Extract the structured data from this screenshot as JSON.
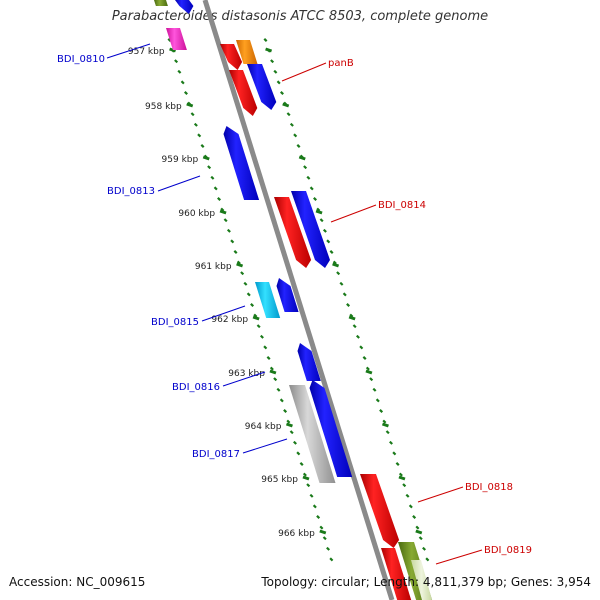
{
  "title": "Parabacteroides distasonis ATCC 8503, complete genome",
  "accession": "Accession: NC_009615",
  "topology": "Topology: circular; Length: 4,811,379 bp; Genes: 3,954",
  "colors": {
    "backbone": "#8a8a8a",
    "tick_green": "#1a7a1a",
    "label_blue": "#0000cc",
    "label_red": "#cc0000",
    "gene_blue": "#0000ee",
    "gene_red": "#ee0000",
    "gene_orange": "#ff8800",
    "gene_pink": "#ff33cc",
    "gene_cyan": "#00c8f0",
    "gene_gray": "#b0b0b0",
    "gene_olive": "#6b8e23"
  },
  "ruler": {
    "unit": "kbp",
    "ticks": [
      {
        "label": "957 kbp"
      },
      {
        "label": "958 kbp"
      },
      {
        "label": "959 kbp"
      },
      {
        "label": "960 kbp"
      },
      {
        "label": "961 kbp"
      },
      {
        "label": "962 kbp"
      },
      {
        "label": "963 kbp"
      },
      {
        "label": "964 kbp"
      },
      {
        "label": "965 kbp"
      },
      {
        "label": "966 kbp"
      }
    ]
  },
  "genes": [
    {
      "id": "g-pink-top",
      "color": "pink",
      "label": ""
    },
    {
      "id": "g-blue-top",
      "color": "blue",
      "label": ""
    },
    {
      "id": "g-olive-top",
      "color": "olive",
      "label": ""
    },
    {
      "id": "g-red-panb-a",
      "color": "red",
      "label": ""
    },
    {
      "id": "g-orange",
      "color": "orange",
      "label": ""
    },
    {
      "id": "g-red-panb",
      "color": "red",
      "label": "panB"
    },
    {
      "id": "g-blue-panb",
      "color": "blue",
      "label": ""
    },
    {
      "id": "g-blue-0813",
      "color": "blue",
      "label": "BDI_0813"
    },
    {
      "id": "g-red-0814",
      "color": "red",
      "label": ""
    },
    {
      "id": "g-blue-0814",
      "color": "blue",
      "label": "BDI_0814"
    },
    {
      "id": "g-cyan-0815",
      "color": "cyan",
      "label": "BDI_0815"
    },
    {
      "id": "g-blue-0815b",
      "color": "blue",
      "label": ""
    },
    {
      "id": "g-blue-0816",
      "color": "blue",
      "label": "BDI_0816"
    },
    {
      "id": "g-gray-0817",
      "color": "gray",
      "label": "BDI_0817"
    },
    {
      "id": "g-blue-0817b",
      "color": "blue",
      "label": ""
    },
    {
      "id": "g-red-0818",
      "color": "red",
      "label": "BDI_0818"
    },
    {
      "id": "g-red-0819",
      "color": "red",
      "label": ""
    },
    {
      "id": "g-olive-0819",
      "color": "olive",
      "label": "BDI_0819"
    }
  ],
  "top_label": "BDI_0810"
}
